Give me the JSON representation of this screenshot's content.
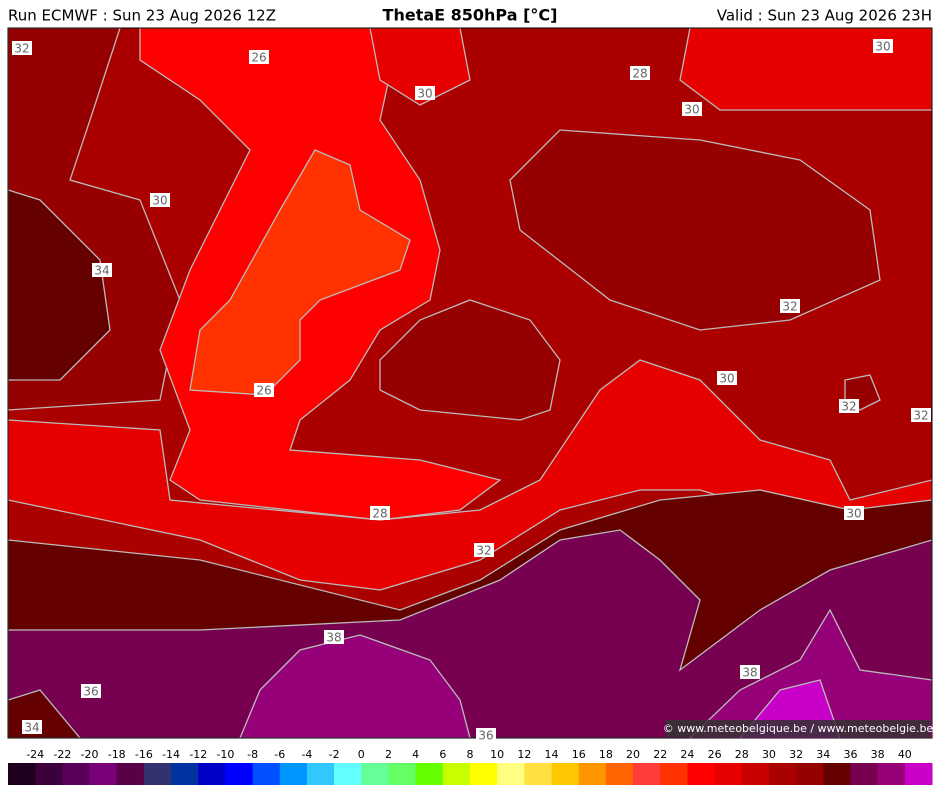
{
  "header": {
    "left": "Run ECMWF : Sun 23 Aug 2026 12Z",
    "title": "ThetaE 850hPa [°C]",
    "right": "Valid : Sun 23 Aug 2026 23H"
  },
  "contour_labels": [
    32,
    26,
    30,
    28,
    30,
    30,
    30,
    34,
    32,
    26,
    30,
    32,
    32,
    28,
    30,
    32,
    38,
    36,
    38,
    34,
    36
  ],
  "colorbar": {
    "ticks": [
      -24,
      -22,
      -20,
      -18,
      -16,
      -14,
      -12,
      -10,
      -8,
      -6,
      -4,
      -2,
      0,
      2,
      4,
      6,
      8,
      10,
      12,
      14,
      16,
      18,
      20,
      22,
      24,
      26,
      28,
      30,
      32,
      34,
      36,
      38,
      40
    ],
    "colors": [
      "#1e001e",
      "#3c003c",
      "#5a005a",
      "#780078",
      "#5a0046",
      "#32326e",
      "#0032a0",
      "#0000c8",
      "#0000ff",
      "#0050ff",
      "#0096ff",
      "#32c8ff",
      "#64ffff",
      "#64ff96",
      "#64ff64",
      "#64ff00",
      "#c8ff00",
      "#ffff00",
      "#ffff80",
      "#ffe040",
      "#ffc800",
      "#ff9600",
      "#ff6400",
      "#ff3c3c",
      "#ff3200",
      "#ff0000",
      "#e60000",
      "#c80000",
      "#aa0000",
      "#960000",
      "#640000",
      "#780050",
      "#960078",
      "#c800c8"
    ]
  },
  "credit": "© www.meteobelgique.be / www.meteobelgie.be"
}
